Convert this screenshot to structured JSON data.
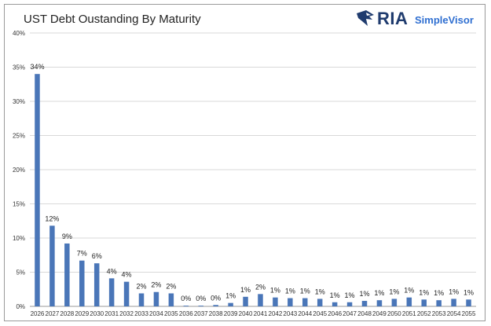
{
  "title": "UST Debt Oustanding By Maturity",
  "logo": {
    "brand": "RIA",
    "product": "SimpleVisor",
    "brand_color": "#1f3b6e",
    "product_color": "#2f6fd1",
    "icon": "hawk-head-icon"
  },
  "chart_data": {
    "type": "bar",
    "title": "UST Debt Oustanding By Maturity",
    "xlabel": "",
    "ylabel": "",
    "ylim": [
      0,
      40
    ],
    "yticks": [
      "0%",
      "5%",
      "10%",
      "15%",
      "20%",
      "25%",
      "30%",
      "35%",
      "40%"
    ],
    "grid": true,
    "bar_color": "#4a76b8",
    "categories": [
      "2026",
      "2027",
      "2028",
      "2029",
      "2030",
      "2031",
      "2032",
      "2033",
      "2034",
      "2035",
      "2036",
      "2037",
      "2038",
      "2039",
      "2040",
      "2041",
      "2042",
      "2043",
      "2044",
      "2045",
      "2046",
      "2047",
      "2048",
      "2049",
      "2050",
      "2051",
      "2052",
      "2053",
      "2054",
      "2055"
    ],
    "values": [
      34,
      11.8,
      9.2,
      6.7,
      6.3,
      4.1,
      3.6,
      1.9,
      2.1,
      1.9,
      0.1,
      0.1,
      0.2,
      0.5,
      1.4,
      1.8,
      1.3,
      1.2,
      1.2,
      1.1,
      0.6,
      0.6,
      0.8,
      0.9,
      1.1,
      1.3,
      1.0,
      0.9,
      1.1,
      1.0
    ],
    "data_labels": [
      "34%",
      "12%",
      "9%",
      "7%",
      "6%",
      "4%",
      "4%",
      "2%",
      "2%",
      "2%",
      "0%",
      "0%",
      "0%",
      "1%",
      "1%",
      "2%",
      "1%",
      "1%",
      "1%",
      "1%",
      "1%",
      "1%",
      "1%",
      "1%",
      "1%",
      "1%",
      "1%",
      "1%",
      "1%",
      "1%"
    ]
  }
}
